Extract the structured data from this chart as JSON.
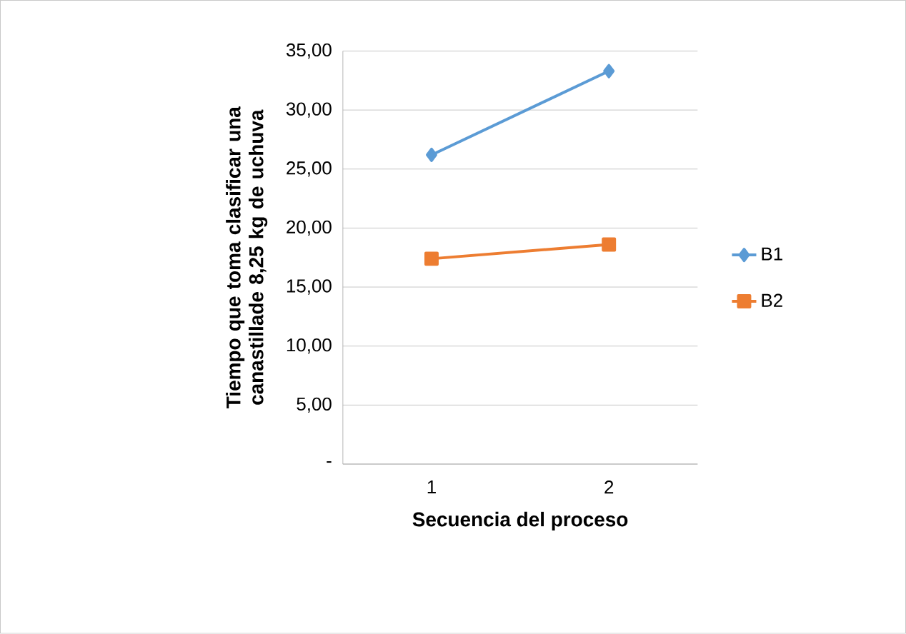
{
  "chart_data": {
    "type": "line",
    "xlabel": "Secuencia del proceso",
    "ylabel": "Tiempo que toma clasificar una canastillade 8,25 kg de uchuva",
    "categories": [
      "1",
      "2"
    ],
    "series": [
      {
        "name": "B1",
        "color": "#5b9bd5",
        "marker": "diamond",
        "values": [
          26.2,
          33.3
        ]
      },
      {
        "name": "B2",
        "color": "#ed7d31",
        "marker": "square",
        "values": [
          17.4,
          18.6
        ]
      }
    ],
    "ylim": [
      0,
      35
    ],
    "yticks": [
      {
        "value": 0,
        "label": "-"
      },
      {
        "value": 5,
        "label": "5,00"
      },
      {
        "value": 10,
        "label": "10,00"
      },
      {
        "value": 15,
        "label": "15,00"
      },
      {
        "value": 20,
        "label": "20,00"
      },
      {
        "value": 25,
        "label": "25,00"
      },
      {
        "value": 30,
        "label": "30,00"
      },
      {
        "value": 35,
        "label": "35,00"
      }
    ],
    "grid": "y",
    "legend": "right",
    "line_style": "solid"
  }
}
